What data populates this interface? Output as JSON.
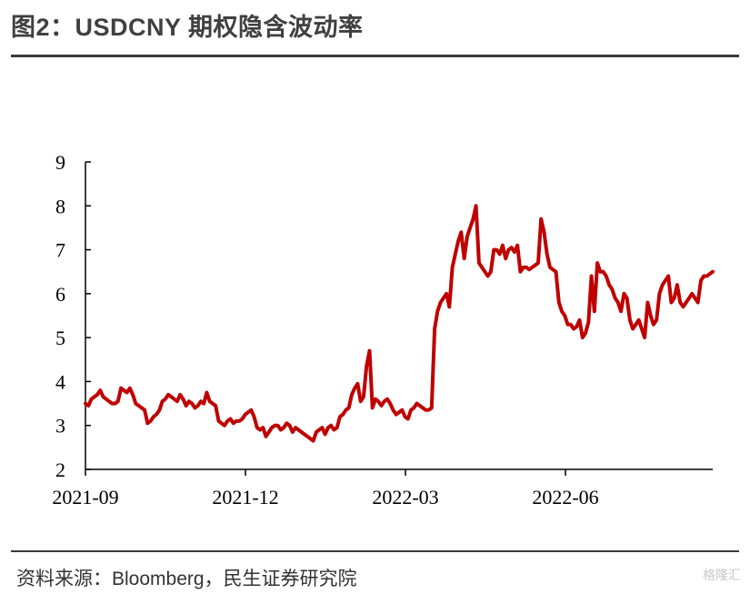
{
  "title": "图2：USDCNY 期权隐含波动率",
  "source": "资料来源：Bloomberg，民生证券研究院",
  "watermark": "格隆汇",
  "colors": {
    "line": "#c00000",
    "axis": "#000000"
  },
  "chart_data": {
    "type": "line",
    "title": "",
    "xlabel": "",
    "ylabel": "",
    "ylim": [
      2,
      9
    ],
    "yticks": [
      2,
      3,
      4,
      5,
      6,
      7,
      8,
      9
    ],
    "xticks": [
      "2021-09",
      "2021-12",
      "2022-03",
      "2022-06"
    ],
    "x_range": [
      "2021-09",
      "2022-08"
    ],
    "grid": false,
    "legend": "none",
    "series": [
      {
        "values": [
          3.5,
          3.45,
          3.6,
          3.65,
          3.7,
          3.8,
          3.65,
          3.6,
          3.55,
          3.5,
          3.5,
          3.55,
          3.85,
          3.8,
          3.75,
          3.85,
          3.7,
          3.5,
          3.45,
          3.4,
          3.35,
          3.05,
          3.1,
          3.2,
          3.25,
          3.35,
          3.55,
          3.6,
          3.7,
          3.65,
          3.6,
          3.55,
          3.7,
          3.6,
          3.45,
          3.55,
          3.5,
          3.4,
          3.45,
          3.55,
          3.5,
          3.75,
          3.55,
          3.5,
          3.45,
          3.1,
          3.05,
          3.0,
          3.1,
          3.15,
          3.05,
          3.1,
          3.1,
          3.15,
          3.25,
          3.3,
          3.35,
          3.2,
          2.95,
          2.9,
          2.95,
          2.75,
          2.85,
          2.95,
          3.0,
          3.0,
          2.9,
          2.95,
          3.05,
          3.0,
          2.85,
          2.95,
          2.9,
          2.85,
          2.8,
          2.75,
          2.7,
          2.65,
          2.85,
          2.9,
          2.95,
          2.8,
          2.95,
          3.0,
          2.9,
          2.95,
          3.2,
          3.25,
          3.35,
          3.4,
          3.7,
          3.85,
          3.95,
          3.55,
          3.65,
          4.35,
          4.7,
          3.4,
          3.6,
          3.55,
          3.45,
          3.55,
          3.6,
          3.5,
          3.35,
          3.25,
          3.3,
          3.35,
          3.2,
          3.15,
          3.35,
          3.4,
          3.5,
          3.45,
          3.4,
          3.35,
          3.35,
          3.4,
          5.2,
          5.6,
          5.8,
          5.9,
          6.0,
          5.7,
          6.6,
          6.9,
          7.2,
          7.4,
          6.8,
          7.3,
          7.5,
          7.7,
          8.0,
          6.7,
          6.6,
          6.5,
          6.4,
          6.5,
          7.0,
          7.0,
          6.9,
          7.1,
          6.8,
          7.0,
          7.05,
          6.95,
          7.1,
          6.5,
          6.6,
          6.6,
          6.55,
          6.6,
          6.65,
          6.7,
          7.7,
          7.4,
          6.9,
          6.6,
          6.55,
          6.5,
          5.8,
          5.6,
          5.5,
          5.3,
          5.3,
          5.2,
          5.25,
          5.4,
          5.0,
          5.1,
          5.35,
          6.4,
          5.6,
          6.7,
          6.5,
          6.5,
          6.4,
          6.2,
          6.1,
          5.9,
          5.8,
          5.6,
          6.0,
          5.9,
          5.4,
          5.2,
          5.3,
          5.4,
          5.2,
          5.0,
          5.8,
          5.5,
          5.3,
          5.4,
          6.0,
          6.2,
          6.3,
          6.4,
          5.8,
          5.9,
          6.2,
          5.8,
          5.7,
          5.8,
          5.9,
          6.0,
          5.9,
          5.8,
          6.3,
          6.4,
          6.4,
          6.45,
          6.5
        ]
      }
    ]
  }
}
